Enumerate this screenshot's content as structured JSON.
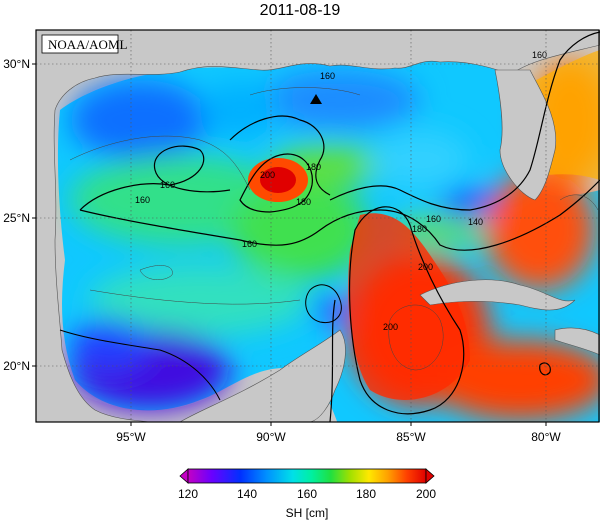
{
  "header": {
    "date": "2011-08-19"
  },
  "map": {
    "credit": "NOAA/AOML",
    "lat_labels": [
      "30°N",
      "25°N",
      "20°N"
    ],
    "lon_labels": [
      "95°W",
      "90°W",
      "85°W",
      "80°W"
    ],
    "contour_labels": [
      "160",
      "160",
      "160",
      "160",
      "180",
      "180",
      "160",
      "180",
      "200",
      "200",
      "140",
      "160",
      "200"
    ],
    "land_color": "#c8c8c8",
    "station_marker": "triangle-icon"
  },
  "colorbar": {
    "ticks": [
      "120",
      "140",
      "160",
      "180",
      "200"
    ],
    "label": "SH [cm]",
    "range": [
      120,
      200
    ],
    "colors": [
      "#c400c4",
      "#6a00ff",
      "#0030ff",
      "#0090ff",
      "#00e0e8",
      "#00f0a0",
      "#20e040",
      "#a0e000",
      "#ffe800",
      "#ffa000",
      "#ff4000",
      "#e00000"
    ]
  }
}
